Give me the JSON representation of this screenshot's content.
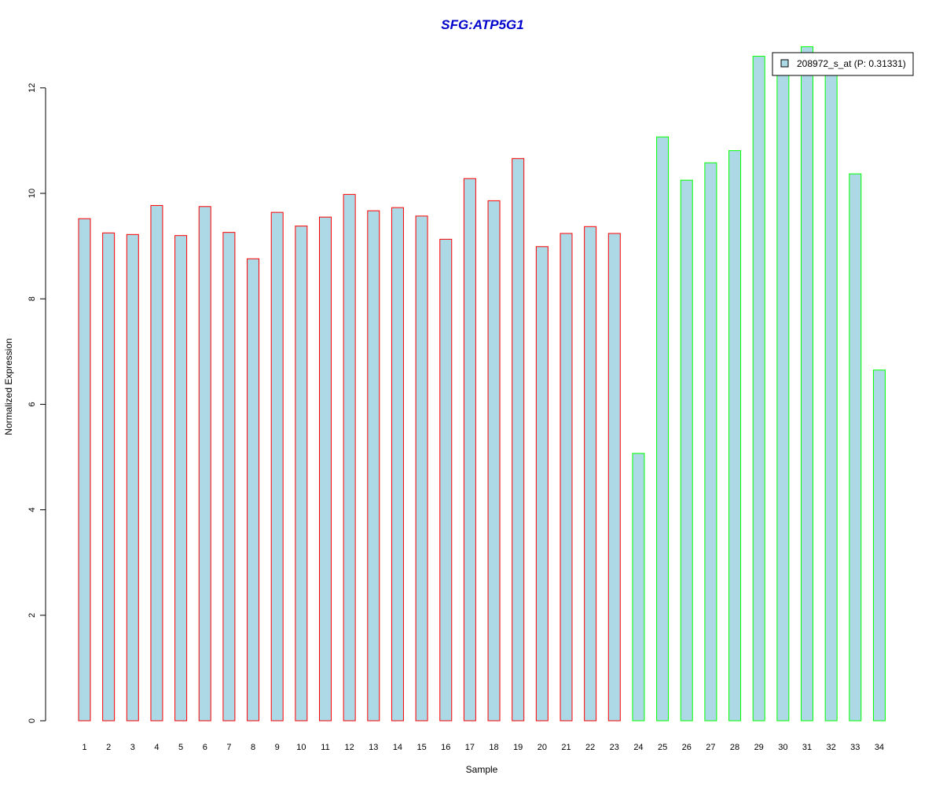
{
  "chart_data": {
    "type": "bar",
    "title": "SFG:ATP5G1",
    "xlabel": "Sample",
    "ylabel": "Normalized Expression",
    "ylim": [
      0,
      12.8
    ],
    "y_ticks": [
      0,
      2,
      4,
      6,
      8,
      10,
      12
    ],
    "grid": false,
    "legend_position": "top-right",
    "categories": [
      "1",
      "2",
      "3",
      "4",
      "5",
      "6",
      "7",
      "8",
      "9",
      "10",
      "11",
      "12",
      "13",
      "14",
      "15",
      "16",
      "17",
      "18",
      "19",
      "20",
      "21",
      "22",
      "23",
      "24",
      "25",
      "26",
      "27",
      "28",
      "29",
      "30",
      "31",
      "32",
      "33",
      "34"
    ],
    "series": [
      {
        "name": "208972_s_at (P: 0.31331)",
        "values": [
          9.52,
          9.25,
          9.22,
          9.77,
          9.2,
          9.75,
          9.26,
          8.76,
          9.64,
          9.38,
          9.55,
          9.98,
          9.67,
          9.73,
          9.57,
          9.13,
          10.28,
          9.86,
          10.66,
          8.99,
          9.24,
          9.37,
          9.24,
          5.07,
          11.07,
          10.25,
          10.58,
          10.81,
          12.6,
          12.42,
          12.78,
          12.4,
          10.37,
          6.65
        ],
        "groups": [
          "red",
          "red",
          "red",
          "red",
          "red",
          "red",
          "red",
          "red",
          "red",
          "red",
          "red",
          "red",
          "red",
          "red",
          "red",
          "red",
          "red",
          "red",
          "red",
          "red",
          "red",
          "red",
          "red",
          "green",
          "green",
          "green",
          "green",
          "green",
          "green",
          "green",
          "green",
          "green",
          "green",
          "green"
        ]
      }
    ],
    "colors": {
      "bar_fill": "#add8e6",
      "group_red_border": "#ff0000",
      "group_green_border": "#00ff00",
      "title": "#0000cc"
    }
  }
}
